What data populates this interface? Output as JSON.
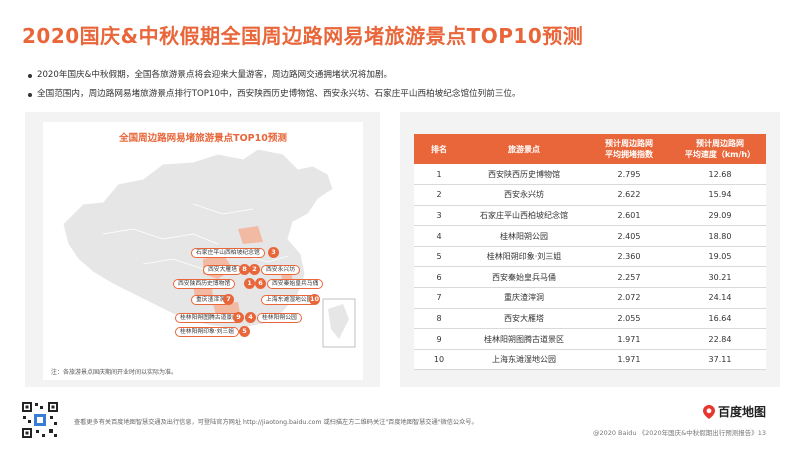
{
  "header": {
    "title": "2020国庆&中秋假期全国周边路网易堵旅游景点TOP10预测"
  },
  "bullets": [
    "2020年国庆&中秋假期，全国各旅游景点将会迎来大量游客，周边路网交通拥堵状况将加剧。",
    "全国范围内，周边路网易堵旅游景点排行TOP10中，西安陕西历史博物馆、西安永兴坊、石家庄平山西柏坡纪念馆位列前三位。"
  ],
  "map": {
    "title": "全国周边路网易堵旅游景点TOP10预测",
    "note": "注：各旅游景点国庆期间开业时间以实际为准。",
    "labels": [
      {
        "rank": "1",
        "name": "西安陕西历史博物馆"
      },
      {
        "rank": "2",
        "name": "西安永兴坊"
      },
      {
        "rank": "3",
        "name": "石家庄平山西柏坡纪念馆"
      },
      {
        "rank": "4",
        "name": "桂林阳朔公园"
      },
      {
        "rank": "5",
        "name": "桂林阳朔印象·刘三姐"
      },
      {
        "rank": "6",
        "name": "西安秦始皇兵马俑"
      },
      {
        "rank": "7",
        "name": "重庆渣滓洞"
      },
      {
        "rank": "8",
        "name": "西安大雁塔"
      },
      {
        "rank": "9",
        "name": "桂林阳朔图腾古道景区"
      },
      {
        "rank": "10",
        "name": "上海东滩湿地公园"
      }
    ]
  },
  "table": {
    "headers": [
      "排名",
      "旅游景点",
      "预计周边路网\n平均拥堵指数",
      "预计周边路网\n平均速度（km/h）"
    ],
    "rows": [
      [
        "1",
        "西安陕西历史博物馆",
        "2.795",
        "12.68"
      ],
      [
        "2",
        "西安永兴坊",
        "2.622",
        "15.94"
      ],
      [
        "3",
        "石家庄平山西柏坡纪念馆",
        "2.601",
        "29.09"
      ],
      [
        "4",
        "桂林阳朔公园",
        "2.405",
        "18.80"
      ],
      [
        "5",
        "桂林阳朔印象·刘三姐",
        "2.360",
        "19.05"
      ],
      [
        "6",
        "西安秦始皇兵马俑",
        "2.257",
        "30.21"
      ],
      [
        "7",
        "重庆渣滓洞",
        "2.072",
        "24.14"
      ],
      [
        "8",
        "西安大雁塔",
        "2.055",
        "16.64"
      ],
      [
        "9",
        "桂林阳朔图腾古道景区",
        "1.971",
        "22.84"
      ],
      [
        "10",
        "上海东滩湿地公园",
        "1.971",
        "37.11"
      ]
    ]
  },
  "footer": {
    "text": "查看更多有关百度地图智慧交通及出行信息，可登陆官方网址 http://jiaotong.baidu.com 或扫描左方二维码关注\"百度地图智慧交通\"微信公众号。",
    "logo": "百度地图",
    "copyright": "@2020 Baidu 《2020年国庆&中秋假期出行预测报告》13"
  },
  "colors": {
    "accent": "#e8663a",
    "panel_bg": "#f3f3f3"
  },
  "icons": [
    "qr-code-icon",
    "map-pin-logo-icon"
  ]
}
